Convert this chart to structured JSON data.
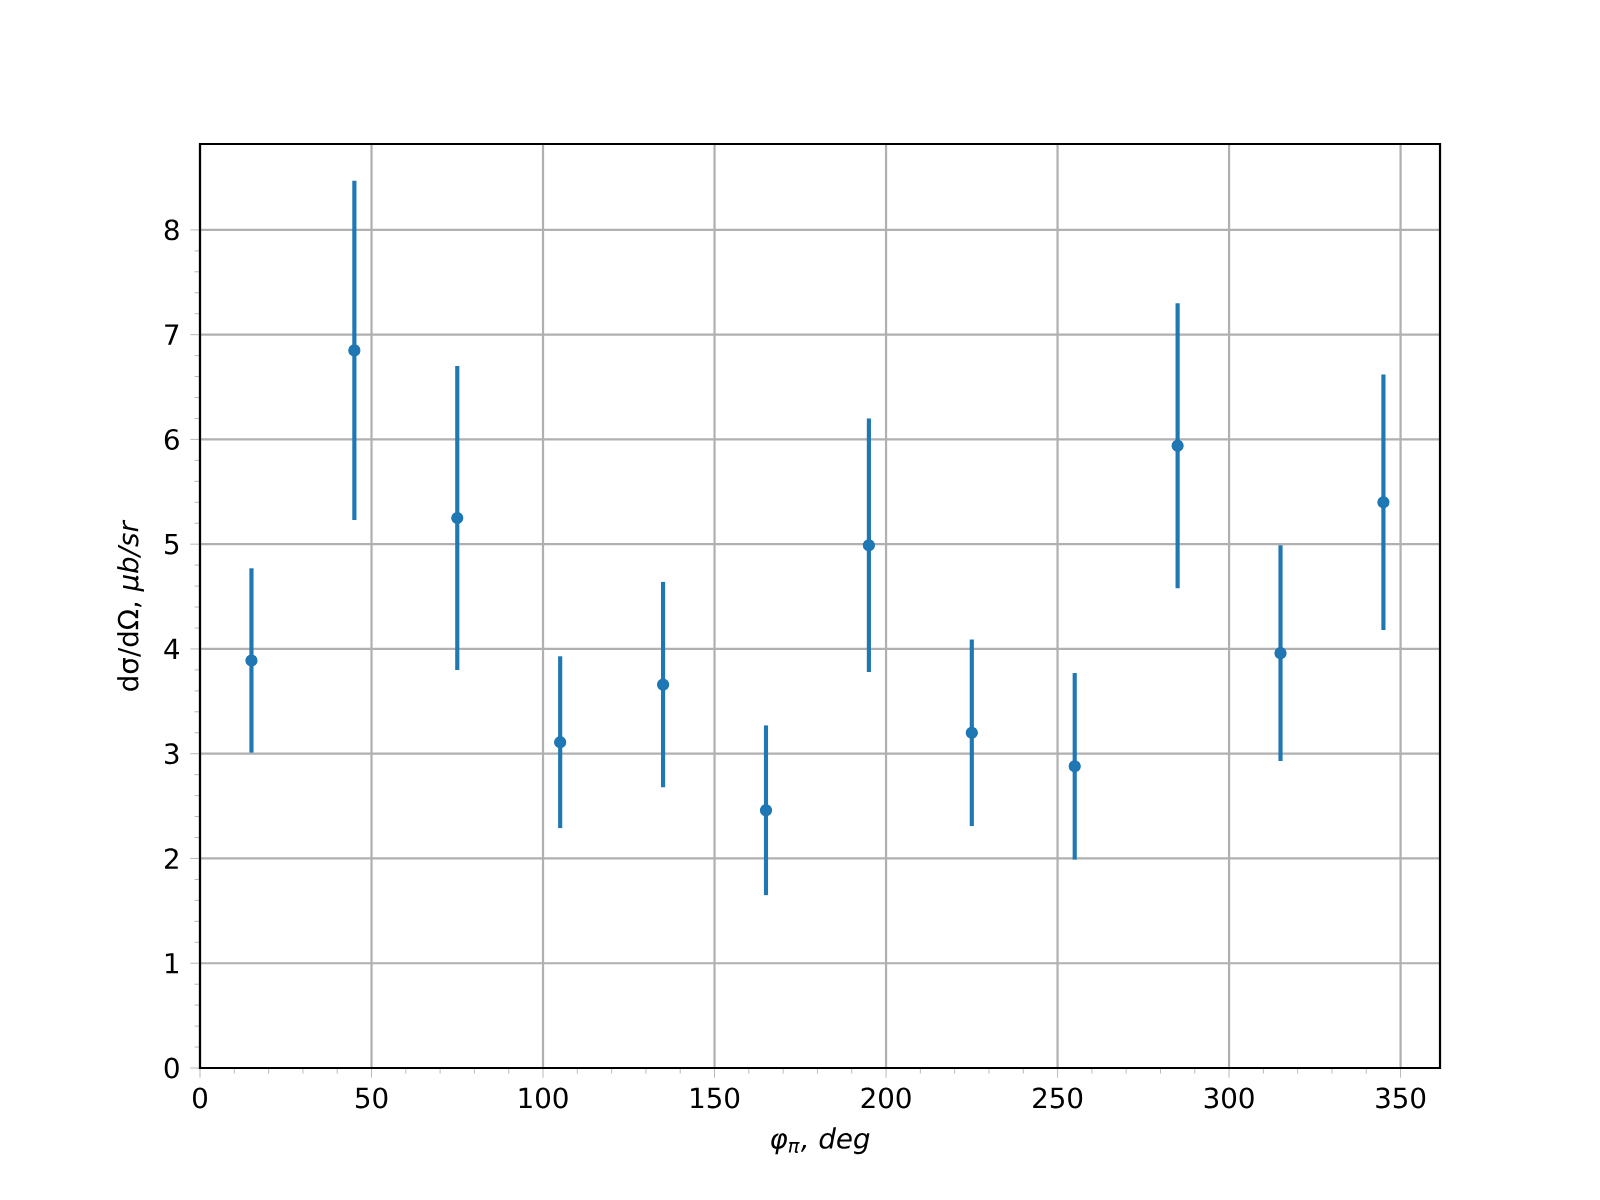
{
  "chart_data": {
    "type": "scatter",
    "xlabel": "φ$_{π}$, deg",
    "ylabel": "dσ/dΩ, *μb/sr*",
    "x": [
      15,
      45,
      75,
      105,
      135,
      165,
      195,
      225,
      255,
      285,
      315,
      345
    ],
    "values": [
      3.89,
      6.85,
      5.25,
      3.11,
      3.66,
      2.46,
      4.99,
      3.2,
      2.88,
      5.94,
      3.96,
      5.4
    ],
    "errors": [
      0.88,
      1.62,
      1.45,
      0.82,
      0.98,
      0.81,
      1.21,
      0.89,
      0.89,
      1.36,
      1.03,
      1.22
    ],
    "color": "#1f77b4",
    "marker": "circle",
    "xlim": [
      0,
      361.5
    ],
    "ylim": [
      0,
      8.82
    ],
    "xticks": [
      0,
      50,
      100,
      150,
      200,
      250,
      300,
      350
    ],
    "yticks": [
      0,
      1,
      2,
      3,
      4,
      5,
      6,
      7,
      8
    ],
    "grid": true
  }
}
